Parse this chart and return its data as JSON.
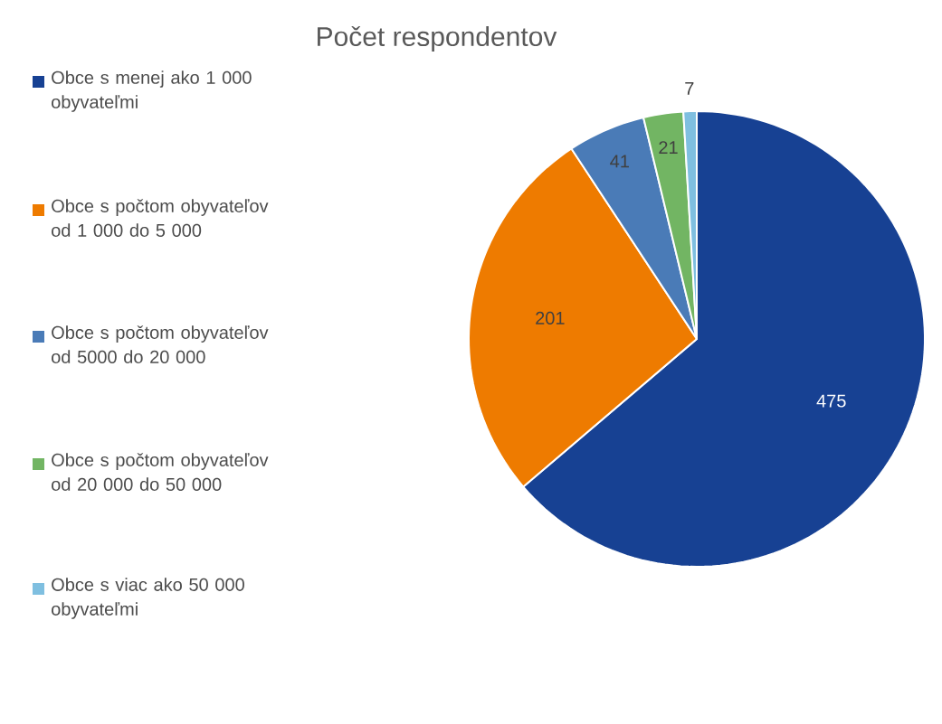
{
  "chart_data": {
    "type": "pie",
    "title": "Počet respondentov",
    "categories": [
      "Obce s menej ako 1 000 obyvateľmi",
      "Obce s počtom obyvateľov od 1 000 do 5 000",
      "Obce s počtom obyvateľov od 5000 do 20 000",
      "Obce s počtom obyvateľov od 20 000 do 50 000",
      "Obce s viac ako 50 000 obyvateľmi"
    ],
    "values": [
      475,
      201,
      41,
      21,
      7
    ],
    "colors": [
      "#174193",
      "#ee7b00",
      "#4a7bb7",
      "#72b563",
      "#7fbfe0"
    ],
    "data_labels": true,
    "legend": "left"
  }
}
